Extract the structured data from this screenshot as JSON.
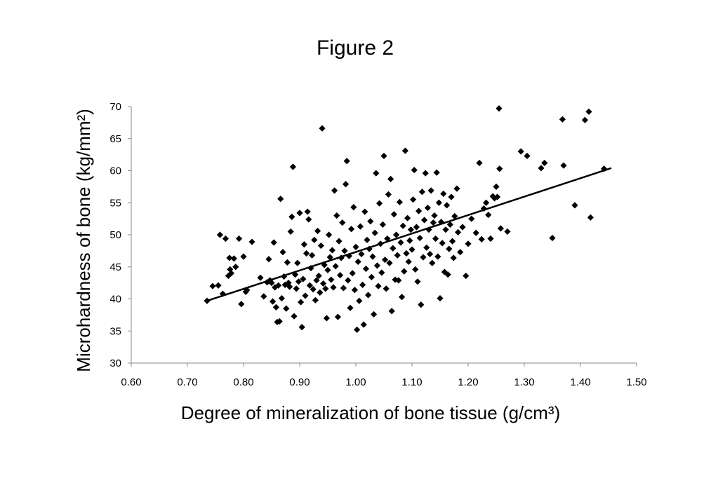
{
  "chart_data": {
    "type": "scatter",
    "title": "Figure 2",
    "xlabel": "Degree of mineralization of bone tissue (g/cm³)",
    "ylabel": "Microhardness of bone (kg/mm²)",
    "xlim": [
      0.6,
      1.5
    ],
    "ylim": [
      30,
      70
    ],
    "x_ticks": [
      "0.60",
      "0.70",
      "0.80",
      "0.90",
      "1.00",
      "1.10",
      "1.20",
      "1.30",
      "1.40",
      "1.50"
    ],
    "y_ticks": [
      "30",
      "35",
      "40",
      "45",
      "50",
      "55",
      "60",
      "65",
      "70"
    ],
    "grid": false,
    "legend": "none",
    "marker": "diamond",
    "marker_color": "#000000",
    "trendline": {
      "type": "linear",
      "x": [
        0.735,
        1.455
      ],
      "y": [
        39.7,
        60.4
      ]
    },
    "points": [
      [
        0.735,
        39.7
      ],
      [
        0.745,
        42.0
      ],
      [
        0.755,
        42.1
      ],
      [
        0.758,
        50.0
      ],
      [
        0.763,
        40.8
      ],
      [
        0.768,
        49.4
      ],
      [
        0.773,
        43.6
      ],
      [
        0.775,
        46.4
      ],
      [
        0.776,
        44.6
      ],
      [
        0.778,
        44.0
      ],
      [
        0.783,
        46.3
      ],
      [
        0.786,
        45.0
      ],
      [
        0.792,
        49.4
      ],
      [
        0.796,
        39.2
      ],
      [
        0.8,
        46.6
      ],
      [
        0.804,
        41.1
      ],
      [
        0.806,
        41.4
      ],
      [
        0.815,
        48.9
      ],
      [
        0.83,
        43.3
      ],
      [
        0.836,
        40.4
      ],
      [
        0.842,
        42.6
      ],
      [
        0.845,
        46.2
      ],
      [
        0.847,
        42.9
      ],
      [
        0.85,
        42.5
      ],
      [
        0.852,
        39.6
      ],
      [
        0.854,
        48.8
      ],
      [
        0.856,
        41.8
      ],
      [
        0.858,
        38.7
      ],
      [
        0.86,
        36.4
      ],
      [
        0.862,
        42.1
      ],
      [
        0.864,
        36.5
      ],
      [
        0.866,
        55.6
      ],
      [
        0.868,
        40.1
      ],
      [
        0.87,
        47.3
      ],
      [
        0.872,
        43.5
      ],
      [
        0.874,
        42.2
      ],
      [
        0.876,
        38.5
      ],
      [
        0.878,
        45.7
      ],
      [
        0.88,
        42.5
      ],
      [
        0.882,
        41.9
      ],
      [
        0.884,
        50.5
      ],
      [
        0.886,
        52.8
      ],
      [
        0.888,
        60.6
      ],
      [
        0.89,
        37.3
      ],
      [
        0.892,
        43.8
      ],
      [
        0.894,
        41.6
      ],
      [
        0.896,
        45.6
      ],
      [
        0.898,
        42.7
      ],
      [
        0.9,
        53.4
      ],
      [
        0.902,
        39.5
      ],
      [
        0.904,
        35.6
      ],
      [
        0.906,
        43.1
      ],
      [
        0.908,
        48.5
      ],
      [
        0.91,
        40.5
      ],
      [
        0.912,
        47.1
      ],
      [
        0.914,
        53.6
      ],
      [
        0.916,
        52.4
      ],
      [
        0.918,
        42.1
      ],
      [
        0.92,
        44.8
      ],
      [
        0.922,
        46.8
      ],
      [
        0.924,
        41.5
      ],
      [
        0.926,
        49.2
      ],
      [
        0.928,
        39.8
      ],
      [
        0.93,
        42.9
      ],
      [
        0.932,
        50.6
      ],
      [
        0.934,
        43.6
      ],
      [
        0.936,
        41.0
      ],
      [
        0.938,
        48.3
      ],
      [
        0.94,
        66.6
      ],
      [
        0.942,
        42.4
      ],
      [
        0.944,
        45.3
      ],
      [
        0.946,
        41.6
      ],
      [
        0.948,
        37.0
      ],
      [
        0.95,
        44.5
      ],
      [
        0.952,
        50.0
      ],
      [
        0.954,
        46.5
      ],
      [
        0.956,
        43.0
      ],
      [
        0.958,
        47.6
      ],
      [
        0.96,
        41.8
      ],
      [
        0.962,
        56.9
      ],
      [
        0.964,
        45.1
      ],
      [
        0.966,
        53.0
      ],
      [
        0.968,
        37.2
      ],
      [
        0.97,
        49.0
      ],
      [
        0.972,
        43.7
      ],
      [
        0.974,
        46.4
      ],
      [
        0.976,
        51.9
      ],
      [
        0.978,
        41.7
      ],
      [
        0.98,
        47.5
      ],
      [
        0.982,
        57.9
      ],
      [
        0.984,
        61.5
      ],
      [
        0.986,
        42.9
      ],
      [
        0.988,
        46.7
      ],
      [
        0.99,
        38.6
      ],
      [
        0.992,
        50.9
      ],
      [
        0.994,
        44.0
      ],
      [
        0.996,
        54.3
      ],
      [
        0.998,
        41.4
      ],
      [
        1.0,
        48.1
      ],
      [
        1.002,
        35.2
      ],
      [
        1.004,
        45.8
      ],
      [
        1.006,
        39.7
      ],
      [
        1.008,
        51.3
      ],
      [
        1.01,
        47.0
      ],
      [
        1.012,
        42.2
      ],
      [
        1.014,
        36.0
      ],
      [
        1.016,
        53.6
      ],
      [
        1.018,
        44.7
      ],
      [
        1.02,
        49.2
      ],
      [
        1.022,
        40.6
      ],
      [
        1.024,
        47.8
      ],
      [
        1.026,
        52.1
      ],
      [
        1.028,
        43.4
      ],
      [
        1.03,
        46.6
      ],
      [
        1.032,
        37.6
      ],
      [
        1.034,
        50.3
      ],
      [
        1.036,
        59.6
      ],
      [
        1.038,
        45.2
      ],
      [
        1.04,
        42.0
      ],
      [
        1.042,
        54.9
      ],
      [
        1.044,
        48.6
      ],
      [
        1.046,
        44.1
      ],
      [
        1.048,
        51.6
      ],
      [
        1.05,
        62.3
      ],
      [
        1.052,
        46.1
      ],
      [
        1.054,
        41.6
      ],
      [
        1.056,
        49.4
      ],
      [
        1.058,
        56.3
      ],
      [
        1.06,
        45.6
      ],
      [
        1.062,
        58.7
      ],
      [
        1.064,
        38.1
      ],
      [
        1.066,
        47.9
      ],
      [
        1.068,
        53.2
      ],
      [
        1.07,
        43.0
      ],
      [
        1.072,
        50.0
      ],
      [
        1.074,
        46.8
      ],
      [
        1.076,
        42.9
      ],
      [
        1.078,
        55.1
      ],
      [
        1.08,
        48.8
      ],
      [
        1.082,
        40.3
      ],
      [
        1.084,
        51.4
      ],
      [
        1.086,
        44.3
      ],
      [
        1.088,
        63.1
      ],
      [
        1.09,
        47.1
      ],
      [
        1.092,
        52.6
      ],
      [
        1.094,
        45.8
      ],
      [
        1.096,
        49.1
      ],
      [
        1.098,
        50.8
      ],
      [
        1.1,
        47.7
      ],
      [
        1.102,
        55.5
      ],
      [
        1.104,
        60.1
      ],
      [
        1.106,
        44.6
      ],
      [
        1.108,
        51.2
      ],
      [
        1.11,
        42.7
      ],
      [
        1.112,
        53.7
      ],
      [
        1.114,
        49.5
      ],
      [
        1.116,
        39.1
      ],
      [
        1.118,
        56.7
      ],
      [
        1.12,
        46.5
      ],
      [
        1.122,
        52.3
      ],
      [
        1.124,
        59.6
      ],
      [
        1.126,
        48.0
      ],
      [
        1.128,
        54.2
      ],
      [
        1.13,
        50.8
      ],
      [
        1.132,
        47.0
      ],
      [
        1.134,
        56.9
      ],
      [
        1.136,
        45.6
      ],
      [
        1.138,
        51.9
      ],
      [
        1.14,
        53.0
      ],
      [
        1.142,
        49.4
      ],
      [
        1.144,
        59.7
      ],
      [
        1.146,
        46.6
      ],
      [
        1.148,
        55.0
      ],
      [
        1.15,
        40.1
      ],
      [
        1.152,
        52.0
      ],
      [
        1.154,
        48.7
      ],
      [
        1.156,
        56.4
      ],
      [
        1.158,
        44.2
      ],
      [
        1.16,
        50.8
      ],
      [
        1.162,
        54.6
      ],
      [
        1.164,
        43.8
      ],
      [
        1.166,
        47.8
      ],
      [
        1.168,
        51.6
      ],
      [
        1.17,
        55.9
      ],
      [
        1.172,
        49.0
      ],
      [
        1.174,
        46.4
      ],
      [
        1.176,
        52.9
      ],
      [
        1.18,
        57.2
      ],
      [
        1.182,
        50.4
      ],
      [
        1.186,
        47.3
      ],
      [
        1.19,
        51.2
      ],
      [
        1.196,
        43.6
      ],
      [
        1.2,
        48.6
      ],
      [
        1.206,
        52.5
      ],
      [
        1.214,
        50.3
      ],
      [
        1.22,
        61.2
      ],
      [
        1.224,
        49.3
      ],
      [
        1.228,
        54.1
      ],
      [
        1.232,
        55.0
      ],
      [
        1.236,
        53.1
      ],
      [
        1.24,
        49.4
      ],
      [
        1.244,
        56.0
      ],
      [
        1.247,
        55.7
      ],
      [
        1.25,
        57.5
      ],
      [
        1.252,
        55.9
      ],
      [
        1.255,
        69.7
      ],
      [
        1.256,
        60.3
      ],
      [
        1.258,
        51.0
      ],
      [
        1.27,
        50.5
      ],
      [
        1.294,
        63.0
      ],
      [
        1.305,
        62.3
      ],
      [
        1.33,
        60.4
      ],
      [
        1.336,
        61.2
      ],
      [
        1.35,
        49.5
      ],
      [
        1.368,
        68.0
      ],
      [
        1.37,
        60.8
      ],
      [
        1.39,
        54.6
      ],
      [
        1.408,
        67.9
      ],
      [
        1.415,
        69.2
      ],
      [
        1.418,
        52.7
      ],
      [
        1.442,
        60.3
      ]
    ]
  }
}
